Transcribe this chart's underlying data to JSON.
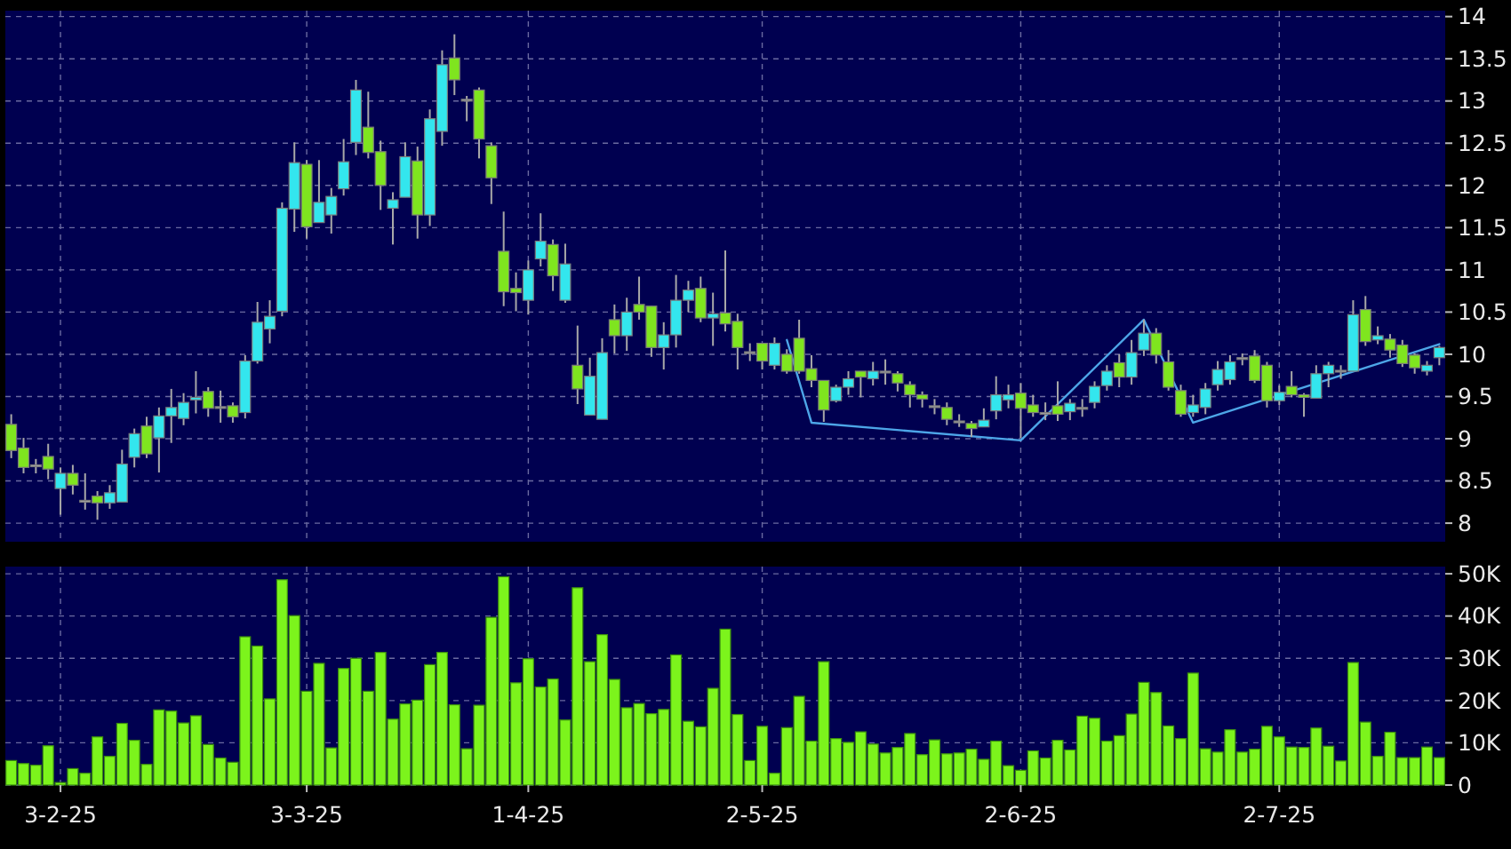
{
  "chart_data": [
    {
      "type": "candlestick",
      "categories": [
        null,
        null,
        null,
        null,
        null,
        null,
        null,
        null,
        null,
        null,
        null,
        null,
        null,
        null,
        null,
        null,
        null,
        null,
        null,
        null,
        null,
        null,
        null,
        null,
        null,
        null,
        null,
        null,
        null,
        null,
        null,
        null,
        null,
        null,
        null,
        null,
        null,
        null,
        null,
        null,
        null,
        null,
        null,
        null,
        null,
        null,
        null,
        null,
        null,
        null,
        null,
        null,
        null,
        null,
        null,
        null,
        null,
        null,
        null,
        null,
        null,
        null,
        null,
        null,
        null,
        null,
        null,
        null,
        null,
        null,
        null,
        null,
        null,
        null,
        null,
        null,
        null,
        null,
        null,
        null,
        null,
        null,
        null,
        null,
        null,
        null,
        null,
        null,
        null,
        null,
        null,
        null,
        null,
        null,
        null,
        null,
        null,
        null,
        null,
        null,
        null,
        null,
        null,
        null,
        null,
        null,
        null,
        null,
        null,
        null,
        null,
        null,
        null,
        null,
        null,
        null,
        null
      ],
      "ohlc": [
        [
          9.17,
          9.29,
          8.77,
          8.86
        ],
        [
          8.89,
          9.01,
          8.59,
          8.66
        ],
        [
          8.69,
          8.76,
          8.59,
          8.69
        ],
        [
          8.79,
          8.94,
          8.52,
          8.64
        ],
        [
          8.41,
          8.66,
          8.1,
          8.59
        ],
        [
          8.59,
          8.69,
          8.34,
          8.45
        ],
        [
          8.27,
          8.59,
          8.16,
          8.27
        ],
        [
          8.32,
          8.38,
          8.04,
          8.24
        ],
        [
          8.24,
          8.45,
          8.17,
          8.36
        ],
        [
          8.25,
          8.87,
          8.25,
          8.7
        ],
        [
          8.78,
          9.12,
          8.66,
          9.06
        ],
        [
          9.15,
          9.26,
          8.77,
          8.82
        ],
        [
          9.01,
          9.37,
          8.6,
          9.27
        ],
        [
          9.27,
          9.59,
          8.95,
          9.37
        ],
        [
          9.24,
          9.54,
          9.16,
          9.43
        ],
        [
          9.46,
          9.8,
          9.3,
          9.49
        ],
        [
          9.56,
          9.61,
          9.26,
          9.36
        ],
        [
          9.38,
          9.57,
          9.19,
          9.38
        ],
        [
          9.39,
          9.43,
          9.19,
          9.26
        ],
        [
          9.31,
          9.99,
          9.24,
          9.92
        ],
        [
          9.92,
          10.62,
          9.89,
          10.38
        ],
        [
          10.3,
          10.64,
          10.13,
          10.45
        ],
        [
          10.51,
          11.8,
          10.45,
          11.73
        ],
        [
          11.72,
          12.51,
          11.45,
          12.27
        ],
        [
          12.25,
          12.3,
          11.37,
          11.51
        ],
        [
          11.56,
          12.3,
          11.56,
          11.8
        ],
        [
          11.65,
          11.97,
          11.43,
          11.87
        ],
        [
          11.96,
          12.55,
          11.88,
          12.28
        ],
        [
          12.51,
          13.25,
          12.36,
          13.13
        ],
        [
          12.69,
          13.11,
          12.32,
          12.39
        ],
        [
          12.4,
          12.53,
          11.71,
          12
        ],
        [
          11.73,
          11.92,
          11.3,
          11.83
        ],
        [
          11.86,
          12.51,
          11.86,
          12.34
        ],
        [
          12.29,
          12.46,
          11.37,
          11.65
        ],
        [
          11.65,
          12.9,
          11.52,
          12.79
        ],
        [
          12.64,
          13.6,
          12.47,
          13.43
        ],
        [
          13.51,
          13.79,
          13.07,
          13.25
        ],
        [
          13.02,
          13.06,
          12.76,
          13.02
        ],
        [
          13.13,
          13.16,
          12.32,
          12.55
        ],
        [
          12.47,
          12.51,
          11.78,
          12.09
        ],
        [
          11.22,
          11.69,
          10.57,
          10.74
        ],
        [
          10.78,
          10.97,
          10.51,
          10.73
        ],
        [
          10.64,
          11.11,
          10.47,
          11
        ],
        [
          11.13,
          11.67,
          11.04,
          11.34
        ],
        [
          11.3,
          11.36,
          10.75,
          10.93
        ],
        [
          10.64,
          11.31,
          10.61,
          11.07
        ],
        [
          9.87,
          10.34,
          9.41,
          9.59
        ],
        [
          9.28,
          9.96,
          9.28,
          9.74
        ],
        [
          9.23,
          10.19,
          9.23,
          10.02
        ],
        [
          10.41,
          10.59,
          10.01,
          10.22
        ],
        [
          10.22,
          10.67,
          10.04,
          10.5
        ],
        [
          10.59,
          10.92,
          10.41,
          10.5
        ],
        [
          10.57,
          10.57,
          9.97,
          10.08
        ],
        [
          10.08,
          10.38,
          9.82,
          10.23
        ],
        [
          10.23,
          10.94,
          10.08,
          10.64
        ],
        [
          10.64,
          10.87,
          10.5,
          10.76
        ],
        [
          10.78,
          10.92,
          10.38,
          10.43
        ],
        [
          10.43,
          10.73,
          10.1,
          10.48
        ],
        [
          10.49,
          11.23,
          10.27,
          10.36
        ],
        [
          10.39,
          10.48,
          9.82,
          10.08
        ],
        [
          10.03,
          10.13,
          9.92,
          10.03
        ],
        [
          10.13,
          10.13,
          9.82,
          9.92
        ],
        [
          9.87,
          10.2,
          9.82,
          10.13
        ],
        [
          10,
          10.06,
          9.77,
          9.8
        ],
        [
          10.19,
          10.41,
          9.77,
          9.8
        ],
        [
          9.83,
          9.99,
          9.61,
          9.69
        ],
        [
          9.69,
          9.69,
          9.2,
          9.34
        ],
        [
          9.45,
          9.64,
          9.43,
          9.61
        ],
        [
          9.61,
          9.8,
          9.52,
          9.71
        ],
        [
          9.8,
          9.8,
          9.49,
          9.73
        ],
        [
          9.71,
          9.91,
          9.63,
          9.8
        ],
        [
          9.8,
          9.94,
          9.64,
          9.8
        ],
        [
          9.77,
          9.8,
          9.56,
          9.66
        ],
        [
          9.64,
          9.68,
          9.37,
          9.52
        ],
        [
          9.52,
          9.56,
          9.37,
          9.47
        ],
        [
          9.39,
          9.47,
          9.29,
          9.39
        ],
        [
          9.37,
          9.43,
          9.16,
          9.23
        ],
        [
          9.21,
          9.29,
          9.14,
          9.21
        ],
        [
          9.18,
          9.21,
          9.02,
          9.12
        ],
        [
          9.14,
          9.36,
          9.14,
          9.22
        ],
        [
          9.33,
          9.74,
          9.23,
          9.52
        ],
        [
          9.46,
          9.64,
          9.36,
          9.52
        ],
        [
          9.54,
          9.66,
          9.01,
          9.36
        ],
        [
          9.4,
          9.52,
          9.26,
          9.31
        ],
        [
          9.31,
          9.43,
          9.22,
          9.31
        ],
        [
          9.39,
          9.68,
          9.21,
          9.29
        ],
        [
          9.32,
          9.47,
          9.22,
          9.42
        ],
        [
          9.37,
          9.47,
          9.26,
          9.37
        ],
        [
          9.43,
          9.68,
          9.36,
          9.62
        ],
        [
          9.63,
          9.87,
          9.57,
          9.8
        ],
        [
          9.9,
          10,
          9.61,
          9.73
        ],
        [
          9.73,
          10.17,
          9.64,
          10.02
        ],
        [
          10.05,
          10.41,
          9.98,
          10.25
        ],
        [
          10.25,
          10.31,
          9.89,
          9.99
        ],
        [
          9.91,
          10.05,
          9.57,
          9.61
        ],
        [
          9.57,
          9.64,
          9.26,
          9.29
        ],
        [
          9.31,
          9.52,
          9.26,
          9.4
        ],
        [
          9.37,
          9.66,
          9.29,
          9.59
        ],
        [
          9.64,
          9.92,
          9.57,
          9.82
        ],
        [
          9.7,
          9.99,
          9.64,
          9.91
        ],
        [
          9.96,
          10.01,
          9.87,
          9.96
        ],
        [
          9.98,
          10.05,
          9.66,
          9.69
        ],
        [
          9.87,
          9.91,
          9.37,
          9.45
        ],
        [
          9.45,
          9.63,
          9.4,
          9.55
        ],
        [
          9.62,
          9.8,
          9.49,
          9.52
        ],
        [
          9.52,
          9.54,
          9.26,
          9.49
        ],
        [
          9.48,
          9.87,
          9.48,
          9.77
        ],
        [
          9.77,
          9.91,
          9.61,
          9.87
        ],
        [
          9.81,
          9.87,
          9.71,
          9.81
        ],
        [
          9.8,
          10.64,
          9.8,
          10.47
        ],
        [
          10.53,
          10.69,
          10.1,
          10.15
        ],
        [
          10.17,
          10.33,
          10.12,
          10.22
        ],
        [
          10.18,
          10.24,
          9.96,
          10.05
        ],
        [
          10.11,
          10.17,
          9.85,
          9.89
        ],
        [
          9.99,
          10.01,
          9.77,
          9.84
        ],
        [
          9.8,
          9.92,
          9.75,
          9.87
        ],
        [
          9.96,
          10.1,
          9.87,
          10.08
        ]
      ],
      "series": [
        {
          "type": "line",
          "color": "#4da6e8",
          "values": [
            null,
            null,
            null,
            null,
            null,
            null,
            null,
            null,
            null,
            null,
            null,
            null,
            null,
            null,
            null,
            null,
            null,
            null,
            null,
            null,
            null,
            null,
            null,
            null,
            null,
            null,
            null,
            null,
            null,
            null,
            null,
            null,
            null,
            null,
            null,
            null,
            null,
            null,
            null,
            null,
            null,
            null,
            null,
            null,
            null,
            null,
            null,
            null,
            null,
            null,
            null,
            null,
            null,
            null,
            null,
            null,
            null,
            null,
            null,
            null,
            null,
            null,
            null,
            10.17,
            null,
            9.19,
            null,
            null,
            null,
            null,
            null,
            null,
            null,
            null,
            null,
            null,
            null,
            null,
            null,
            null,
            null,
            null,
            8.98,
            null,
            null,
            null,
            null,
            null,
            null,
            null,
            null,
            null,
            10.41,
            null,
            null,
            null,
            9.19,
            null,
            null,
            null,
            null,
            null,
            null,
            null,
            null,
            null,
            null,
            null,
            null,
            null,
            null,
            null,
            null,
            null,
            null,
            null,
            10.12
          ]
        }
      ],
      "ylim": [
        7.78,
        14.07
      ],
      "yticks": [
        8,
        8.5,
        9,
        9.5,
        10,
        10.5,
        11,
        11.5,
        12,
        12.5,
        13,
        13.5,
        14
      ],
      "grid": true,
      "tick_labels": "y"
    },
    {
      "type": "bar",
      "categories": [
        null,
        null,
        null,
        null,
        "3-2-25",
        null,
        null,
        null,
        null,
        null,
        null,
        null,
        null,
        null,
        null,
        null,
        null,
        null,
        null,
        null,
        null,
        null,
        null,
        null,
        "3-3-25",
        null,
        null,
        null,
        null,
        null,
        null,
        null,
        null,
        null,
        null,
        null,
        null,
        null,
        null,
        null,
        null,
        null,
        "1-4-25",
        null,
        null,
        null,
        null,
        null,
        null,
        null,
        null,
        null,
        null,
        null,
        null,
        null,
        null,
        null,
        null,
        null,
        null,
        "2-5-25",
        null,
        null,
        null,
        null,
        null,
        null,
        null,
        null,
        null,
        null,
        null,
        null,
        null,
        null,
        null,
        null,
        null,
        null,
        null,
        null,
        "2-6-25",
        null,
        null,
        null,
        null,
        null,
        null,
        null,
        null,
        null,
        null,
        null,
        null,
        null,
        null,
        null,
        null,
        null,
        null,
        null,
        null,
        "2-7-25",
        null,
        null,
        null,
        null,
        null,
        null,
        null,
        null,
        null,
        null,
        null,
        null,
        null
      ],
      "values": [
        5.8,
        5.1,
        4.7,
        9.3,
        0.6,
        3.9,
        2.8,
        11.4,
        6.8,
        14.6,
        10.6,
        4.9,
        17.8,
        17.5,
        14.7,
        16.4,
        9.6,
        6.4,
        5.4,
        35.1,
        32.9,
        20.4,
        48.6,
        40.1,
        22.2,
        28.8,
        8.8,
        27.6,
        30,
        22.2,
        31.4,
        15.6,
        19.2,
        20.1,
        28.5,
        31.4,
        19,
        8.6,
        18.9,
        39.7,
        49.3,
        24.2,
        29.9,
        23.2,
        25.1,
        15.4,
        46.7,
        29.2,
        35.6,
        25,
        18.3,
        19.3,
        16.9,
        17.9,
        30.8,
        15.1,
        13.8,
        22.9,
        36.9,
        16.7,
        5.8,
        13.9,
        2.8,
        13.6,
        21,
        10.4,
        29.2,
        11,
        10.1,
        12.6,
        9.7,
        7.6,
        8.9,
        12.2,
        7.2,
        10.7,
        7.4,
        7.6,
        8.5,
        6.1,
        10.4,
        4.6,
        3.5,
        8.1,
        6.4,
        10.6,
        8.3,
        16.3,
        15.8,
        10.4,
        11.7,
        16.8,
        24.3,
        21.9,
        14,
        11,
        26.5,
        8.6,
        7.8,
        13.1,
        7.8,
        8.5,
        13.9,
        11.4,
        9,
        8.9,
        13.5,
        9.2,
        5.7,
        29,
        14.9,
        6.8,
        12.5,
        6.5,
        6.5,
        9,
        6.5
      ],
      "color": "#7cf41c",
      "ylim": [
        0,
        51.7
      ],
      "yticks": [
        0,
        {
          "value": 10,
          "label": "10K"
        },
        {
          "value": 20,
          "label": "20K"
        },
        {
          "value": 30,
          "label": "30K"
        },
        {
          "value": 40,
          "label": "40K"
        },
        {
          "value": 50,
          "label": "50K"
        }
      ],
      "grid": true
    }
  ]
}
